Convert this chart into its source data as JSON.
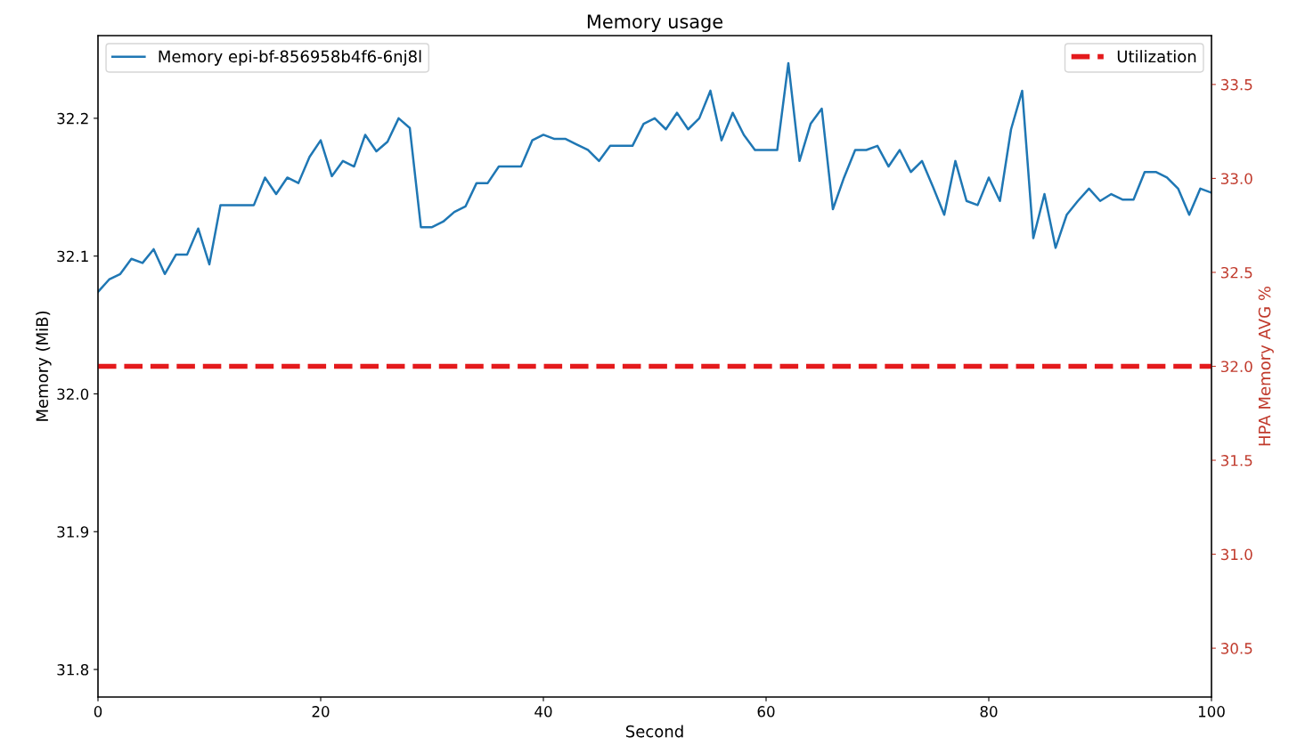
{
  "chart_data": {
    "type": "line",
    "title": "Memory usage",
    "xlabel": "Second",
    "ylabel": "Memory (MiB)",
    "y2label": "HPA Memory AVG %",
    "x": [
      0,
      1,
      2,
      3,
      4,
      5,
      6,
      7,
      8,
      9,
      10,
      11,
      12,
      13,
      14,
      15,
      16,
      17,
      18,
      19,
      20,
      21,
      22,
      23,
      24,
      25,
      26,
      27,
      28,
      29,
      30,
      31,
      32,
      33,
      34,
      35,
      36,
      37,
      38,
      39,
      40,
      41,
      42,
      43,
      44,
      45,
      46,
      47,
      48,
      49,
      50,
      51,
      52,
      53,
      54,
      55,
      56,
      57,
      58,
      59,
      60,
      61,
      62,
      63,
      64,
      65,
      66,
      67,
      68,
      69,
      70,
      71,
      72,
      73,
      74,
      75,
      76,
      77,
      78,
      79,
      80,
      81,
      82,
      83,
      84,
      85,
      86,
      87,
      88,
      89,
      90,
      91,
      92,
      93,
      94,
      95,
      96,
      97,
      98,
      99,
      100
    ],
    "series": [
      {
        "name": "Memory epi-bf-856958b4f6-6nj8l",
        "color": "#1f77b4",
        "values": [
          32.074,
          32.083,
          32.087,
          32.098,
          32.095,
          32.105,
          32.087,
          32.101,
          32.101,
          32.12,
          32.094,
          32.137,
          32.137,
          32.137,
          32.137,
          32.157,
          32.145,
          32.157,
          32.153,
          32.172,
          32.184,
          32.158,
          32.169,
          32.165,
          32.188,
          32.176,
          32.183,
          32.2,
          32.193,
          32.121,
          32.121,
          32.125,
          32.132,
          32.136,
          32.153,
          32.153,
          32.165,
          32.165,
          32.165,
          32.184,
          32.188,
          32.185,
          32.185,
          32.181,
          32.177,
          32.169,
          32.18,
          32.18,
          32.18,
          32.196,
          32.2,
          32.192,
          32.204,
          32.192,
          32.2,
          32.22,
          32.184,
          32.204,
          32.188,
          32.177,
          32.177,
          32.177,
          32.24,
          32.169,
          32.196,
          32.207,
          32.134,
          32.157,
          32.177,
          32.177,
          32.18,
          32.165,
          32.177,
          32.161,
          32.169,
          32.15,
          32.13,
          32.169,
          32.14,
          32.137,
          32.157,
          32.14,
          32.192,
          32.22,
          32.113,
          32.145,
          32.106,
          32.13,
          32.14,
          32.149,
          32.14,
          32.145,
          32.141,
          32.141,
          32.161,
          32.161,
          32.157,
          32.149,
          32.13,
          32.149,
          32.146
        ]
      }
    ],
    "ref_lines": [
      {
        "axis": "y2",
        "value": 32.0,
        "label": "Utilization",
        "color": "#e41a1c",
        "line_style": "dashed"
      }
    ],
    "xlim": [
      0,
      100
    ],
    "xticks": [
      0,
      20,
      40,
      60,
      80,
      100
    ],
    "ylim": [
      31.78,
      32.26
    ],
    "yticks": [
      31.8,
      31.9,
      {
        "value": 32,
        "label": "32.0"
      },
      32.1,
      32.2
    ],
    "y2lim": [
      30.24,
      33.76
    ],
    "y2ticks": [
      30.5,
      {
        "value": 31,
        "label": "31.0"
      },
      31.5,
      {
        "value": 32,
        "label": "32.0"
      },
      32.5,
      {
        "value": 33,
        "label": "33.0"
      },
      33.5
    ],
    "grid": false,
    "legend": "top left",
    "marker": "none",
    "line_style": "solid"
  }
}
